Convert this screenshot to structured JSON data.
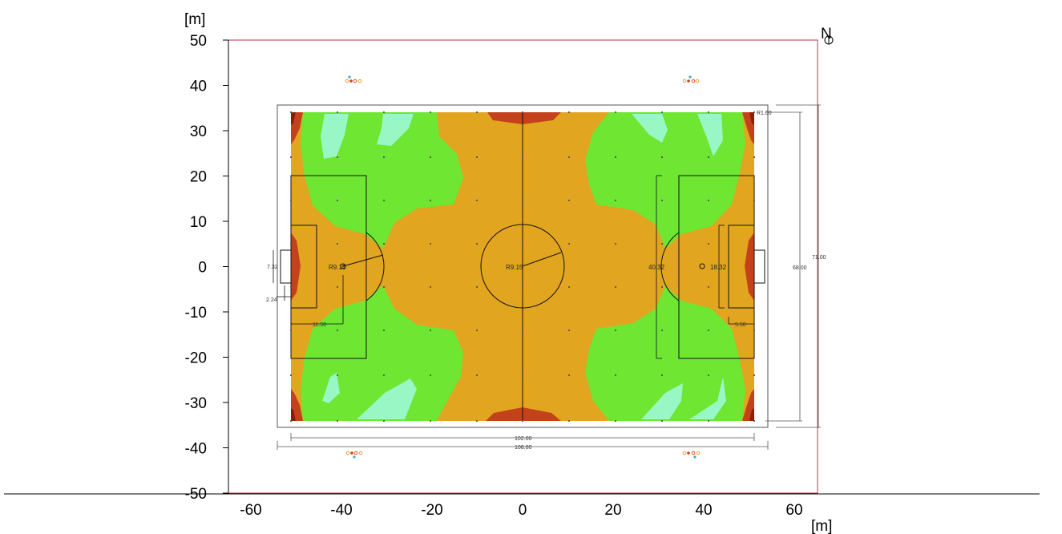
{
  "axes": {
    "x_unit": "[m]",
    "y_unit": "[m]",
    "x_ticks": [
      "-60",
      "-40",
      "-20",
      "0",
      "20",
      "40",
      "60"
    ],
    "y_ticks": [
      "50",
      "40",
      "30",
      "20",
      "10",
      "0",
      "-10",
      "-20",
      "-30",
      "-40",
      "-50"
    ]
  },
  "compass": {
    "label": "N"
  },
  "dimensions": {
    "radius_corner": "R1.00",
    "goal_width": "7.32",
    "goal_depth": "2.24",
    "penalty_spot": "11.50",
    "penalty_arc": "R9.15",
    "center_circle": "R9.15",
    "penalty_area_width": "40.32",
    "goal_area_width": "18.32",
    "goal_area_depth": "5.50",
    "field_width": "68.00",
    "outer_width": "71.00",
    "field_length": "102.00",
    "outer_length": "108.00"
  },
  "colors": {
    "boundary": "#c0304a",
    "orange": "#e2a520",
    "green": "#6ee632",
    "mint": "#99f7c6",
    "red": "#c3421b",
    "darkred": "#8e1c0c"
  }
}
